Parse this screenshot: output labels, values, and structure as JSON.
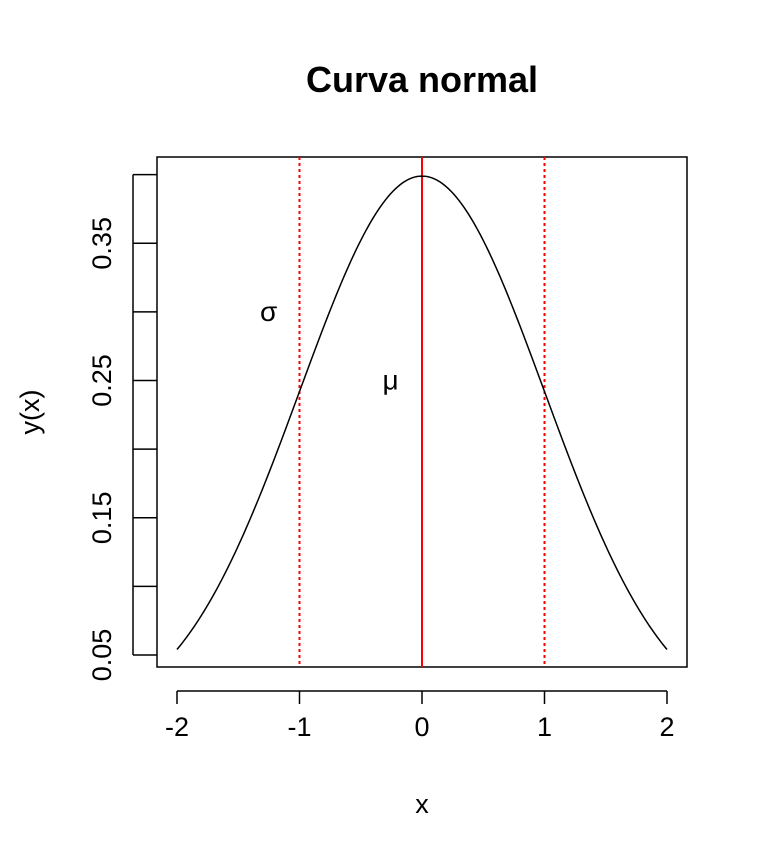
{
  "chart_data": {
    "type": "line",
    "title": "Curva normal",
    "xlabel": "x",
    "ylabel": "y(x)",
    "xlim": [
      -2,
      2
    ],
    "ylim": [
      0.05,
      0.399
    ],
    "xticks": [
      -2,
      -1,
      0,
      1,
      2
    ],
    "xtick_labels": [
      "-2",
      "-1",
      "0",
      "1",
      "2"
    ],
    "yticks": [
      0.05,
      0.1,
      0.15,
      0.2,
      0.25,
      0.3,
      0.35,
      0.4
    ],
    "ytick_labels": [
      "0.05",
      "",
      "0.15",
      "",
      "0.25",
      "",
      "0.35",
      ""
    ],
    "grid": false,
    "series": [
      {
        "color": "#000000",
        "x": [
          -2.0,
          -1.8,
          -1.6,
          -1.4,
          -1.2,
          -1.0,
          -0.8,
          -0.6,
          -0.4,
          -0.2,
          0.0,
          0.2,
          0.4,
          0.6,
          0.8,
          1.0,
          1.2,
          1.4,
          1.6,
          1.8,
          2.0
        ],
        "y": [
          0.054,
          0.079,
          0.111,
          0.15,
          0.194,
          0.242,
          0.29,
          0.333,
          0.368,
          0.391,
          0.399,
          0.391,
          0.368,
          0.333,
          0.29,
          0.242,
          0.194,
          0.15,
          0.111,
          0.079,
          0.054
        ]
      }
    ],
    "vlines": [
      {
        "x": 0,
        "color": "#ff0000",
        "style": "solid"
      },
      {
        "x": -1,
        "color": "#ff0000",
        "style": "dotted"
      },
      {
        "x": 1,
        "color": "#ff0000",
        "style": "dotted"
      }
    ],
    "annotations": [
      {
        "text": "σ",
        "x": -1.2,
        "y": 0.3
      },
      {
        "text": "μ",
        "x": -0.2,
        "y": 0.25
      }
    ]
  }
}
